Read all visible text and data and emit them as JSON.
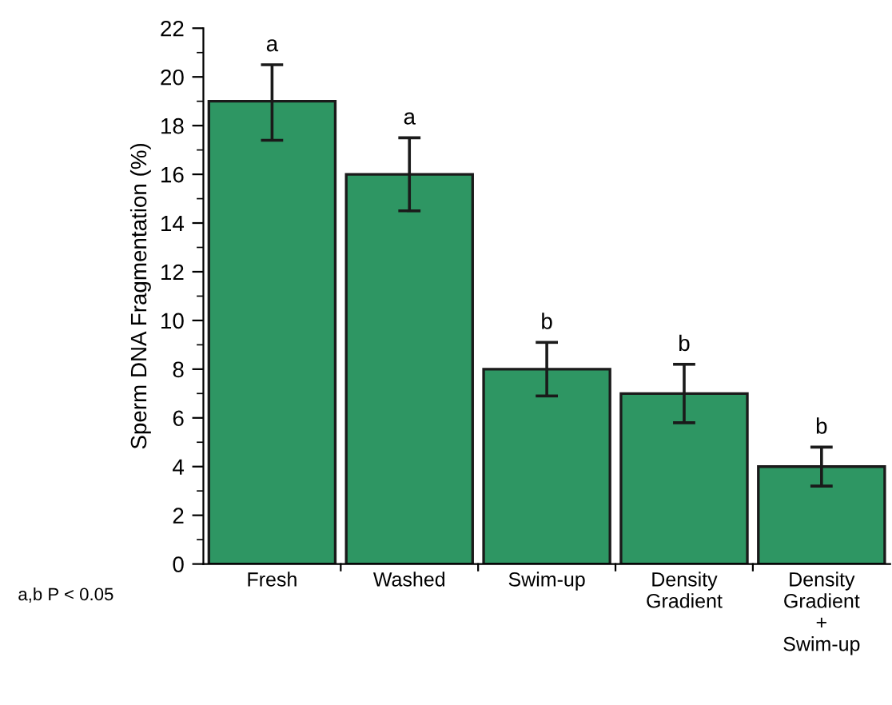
{
  "chart_data": {
    "type": "bar",
    "ylabel": "Sperm DNA Fragmentation (%)",
    "categories": [
      "Fresh",
      "Washed",
      "Swim-up",
      "Density\nGradient",
      "Density\nGradient\n+\nSwim-up"
    ],
    "values": [
      19,
      16,
      8,
      7,
      4
    ],
    "errors": [
      [
        17.4,
        20.5
      ],
      [
        14.5,
        17.5
      ],
      [
        6.9,
        9.1
      ],
      [
        5.8,
        8.2
      ],
      [
        3.2,
        4.8
      ]
    ],
    "color": "#2e9663",
    "ylim": [
      0,
      22
    ],
    "yticks": [
      0,
      2,
      4,
      6,
      8,
      10,
      12,
      14,
      16,
      18,
      20,
      22
    ],
    "grid": false,
    "legend": false,
    "annotations": [
      "a",
      "a",
      "b",
      "b",
      "b",
      "a,b P < 0.05"
    ]
  }
}
